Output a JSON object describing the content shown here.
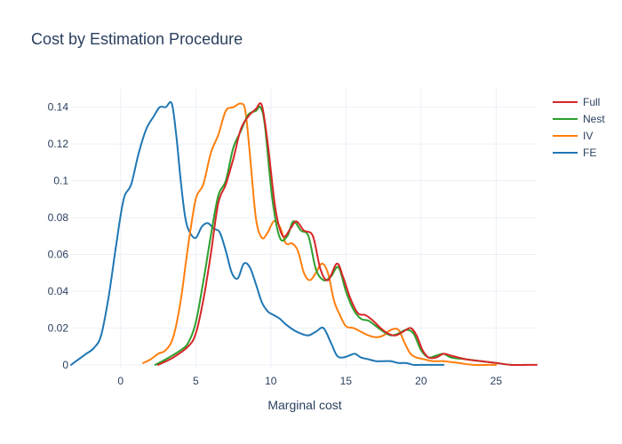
{
  "chart_data": {
    "type": "line",
    "title": "Cost by Estimation Procedure",
    "xlabel": "Marginal cost",
    "ylabel": "",
    "xlim": [
      -3.3,
      27.7
    ],
    "ylim": [
      -0.002,
      0.15
    ],
    "xticks": [
      0,
      5,
      10,
      15,
      20,
      25
    ],
    "yticks": [
      0,
      0.02,
      0.04,
      0.06,
      0.08,
      0.1,
      0.12,
      0.14
    ],
    "ytick_labels": [
      "0",
      "0.02",
      "0.04",
      "0.06",
      "0.08",
      "0.1",
      "0.12",
      "0.14"
    ],
    "grid": true,
    "legend_position": "top-right",
    "series": [
      {
        "name": "Full",
        "color": "#d62728",
        "x": [
          2.5,
          3.5,
          4.5,
          5.0,
          5.5,
          6.0,
          6.5,
          7.0,
          7.5,
          8.0,
          8.5,
          9.0,
          9.4,
          9.8,
          10.3,
          10.8,
          11.3,
          11.7,
          12.2,
          12.8,
          13.3,
          13.8,
          14.4,
          14.8,
          15.3,
          15.8,
          16.3,
          16.8,
          17.3,
          17.8,
          18.3,
          18.8,
          19.3,
          19.7,
          20.1,
          20.5,
          21.0,
          21.5,
          22.0,
          23.0,
          24.0,
          25.0,
          26.0,
          27.0,
          27.7
        ],
        "values": [
          0.0,
          0.004,
          0.01,
          0.017,
          0.035,
          0.06,
          0.088,
          0.098,
          0.112,
          0.128,
          0.135,
          0.139,
          0.141,
          0.12,
          0.085,
          0.07,
          0.074,
          0.078,
          0.073,
          0.07,
          0.052,
          0.046,
          0.055,
          0.048,
          0.036,
          0.028,
          0.027,
          0.024,
          0.02,
          0.017,
          0.016,
          0.018,
          0.02,
          0.016,
          0.008,
          0.004,
          0.004,
          0.006,
          0.005,
          0.003,
          0.002,
          0.001,
          0.0,
          0.0,
          0.0
        ]
      },
      {
        "name": "Nest",
        "color": "#2ca02c",
        "x": [
          2.3,
          3.0,
          4.0,
          4.5,
          5.0,
          5.5,
          6.0,
          6.5,
          7.0,
          7.5,
          8.0,
          8.5,
          9.0,
          9.3,
          9.6,
          10.1,
          10.6,
          11.1,
          11.5,
          12.0,
          12.5,
          13.0,
          13.5,
          14.0,
          14.5,
          15.0,
          15.5,
          16.0,
          16.5,
          17.0,
          17.5,
          18.0,
          18.5,
          19.0,
          19.5,
          20.0,
          20.5,
          21.0,
          21.5,
          22.0,
          23.0,
          24.0,
          25.0,
          26.0,
          27.0
        ],
        "values": [
          0.0,
          0.003,
          0.008,
          0.012,
          0.023,
          0.045,
          0.07,
          0.092,
          0.1,
          0.118,
          0.127,
          0.136,
          0.138,
          0.14,
          0.13,
          0.09,
          0.069,
          0.07,
          0.078,
          0.073,
          0.07,
          0.052,
          0.046,
          0.048,
          0.053,
          0.04,
          0.03,
          0.025,
          0.024,
          0.021,
          0.018,
          0.016,
          0.017,
          0.019,
          0.017,
          0.008,
          0.004,
          0.005,
          0.006,
          0.004,
          0.003,
          0.002,
          0.001,
          0.0,
          0.0
        ]
      },
      {
        "name": "IV",
        "color": "#ff7f0e",
        "x": [
          1.5,
          2.0,
          2.5,
          3.0,
          3.5,
          4.0,
          4.5,
          5.0,
          5.5,
          6.0,
          6.5,
          7.0,
          7.5,
          8.0,
          8.3,
          8.6,
          9.0,
          9.4,
          9.8,
          10.2,
          10.6,
          11.0,
          11.4,
          11.8,
          12.2,
          12.6,
          13.0,
          13.4,
          13.8,
          14.2,
          14.6,
          15.0,
          15.5,
          16.0,
          16.5,
          17.0,
          17.5,
          18.0,
          18.5,
          18.9,
          19.3,
          19.7,
          20.2,
          20.8,
          21.5,
          22.5,
          23.5,
          24.5,
          25.0
        ],
        "values": [
          0.001,
          0.003,
          0.006,
          0.008,
          0.015,
          0.035,
          0.065,
          0.09,
          0.098,
          0.115,
          0.125,
          0.138,
          0.14,
          0.142,
          0.138,
          0.115,
          0.08,
          0.069,
          0.072,
          0.078,
          0.075,
          0.066,
          0.066,
          0.062,
          0.05,
          0.046,
          0.05,
          0.055,
          0.05,
          0.035,
          0.027,
          0.021,
          0.02,
          0.018,
          0.016,
          0.015,
          0.016,
          0.019,
          0.019,
          0.012,
          0.006,
          0.004,
          0.003,
          0.002,
          0.002,
          0.001,
          0.0,
          0.0,
          0.0
        ]
      },
      {
        "name": "FE",
        "color": "#1f77b4",
        "x": [
          -3.3,
          -2.8,
          -2.3,
          -1.8,
          -1.3,
          -0.8,
          -0.3,
          0.2,
          0.7,
          1.2,
          1.7,
          2.2,
          2.6,
          3.0,
          3.4,
          3.7,
          4.0,
          4.3,
          4.6,
          5.0,
          5.4,
          5.8,
          6.2,
          6.6,
          7.0,
          7.4,
          7.8,
          8.2,
          8.6,
          9.0,
          9.4,
          9.8,
          10.2,
          10.6,
          11.0,
          11.5,
          12.0,
          12.5,
          13.0,
          13.5,
          14.0,
          14.4,
          14.8,
          15.2,
          15.6,
          16.0,
          16.5,
          17.0,
          17.5,
          18.0,
          18.5,
          19.0,
          19.5,
          20.0,
          20.5,
          21.5
        ],
        "values": [
          0.0,
          0.003,
          0.006,
          0.009,
          0.016,
          0.037,
          0.065,
          0.09,
          0.098,
          0.115,
          0.128,
          0.135,
          0.14,
          0.14,
          0.142,
          0.125,
          0.1,
          0.08,
          0.072,
          0.069,
          0.075,
          0.077,
          0.074,
          0.072,
          0.062,
          0.05,
          0.047,
          0.055,
          0.053,
          0.044,
          0.034,
          0.029,
          0.027,
          0.025,
          0.022,
          0.019,
          0.017,
          0.016,
          0.018,
          0.02,
          0.012,
          0.005,
          0.004,
          0.005,
          0.006,
          0.004,
          0.003,
          0.002,
          0.002,
          0.002,
          0.001,
          0.001,
          0.0,
          0.0,
          0.0,
          0.0
        ]
      }
    ]
  }
}
